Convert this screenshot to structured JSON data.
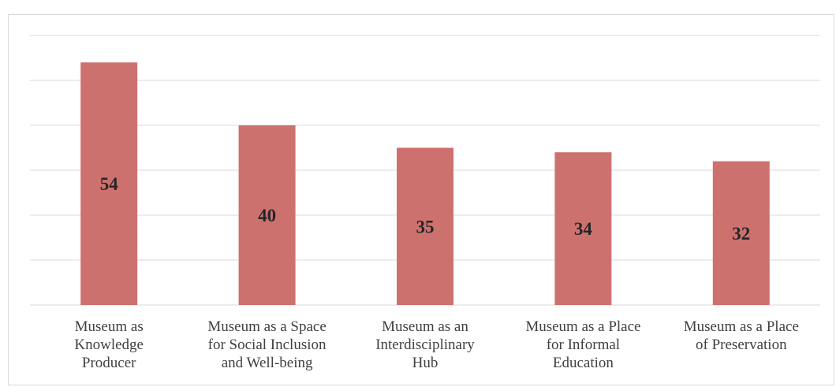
{
  "chart_data": {
    "type": "bar",
    "categories": [
      "Museum as\nKnowledge\nProducer",
      "Museum as a Space\nfor Social Inclusion\nand Well-being",
      "Museum as an\nInterdisciplinary\nHub",
      "Museum as a Place\nfor Informal\nEducation",
      "Museum as a Place\nof Preservation"
    ],
    "values": [
      54,
      40,
      35,
      34,
      32
    ],
    "data_labels": [
      "54",
      "40",
      "35",
      "34",
      "32"
    ],
    "title": "",
    "xlabel": "",
    "ylabel": "",
    "ylim": [
      0,
      60
    ],
    "grid": true,
    "bar_color": "#cd716f",
    "grid_color": "#d9d9d9"
  }
}
